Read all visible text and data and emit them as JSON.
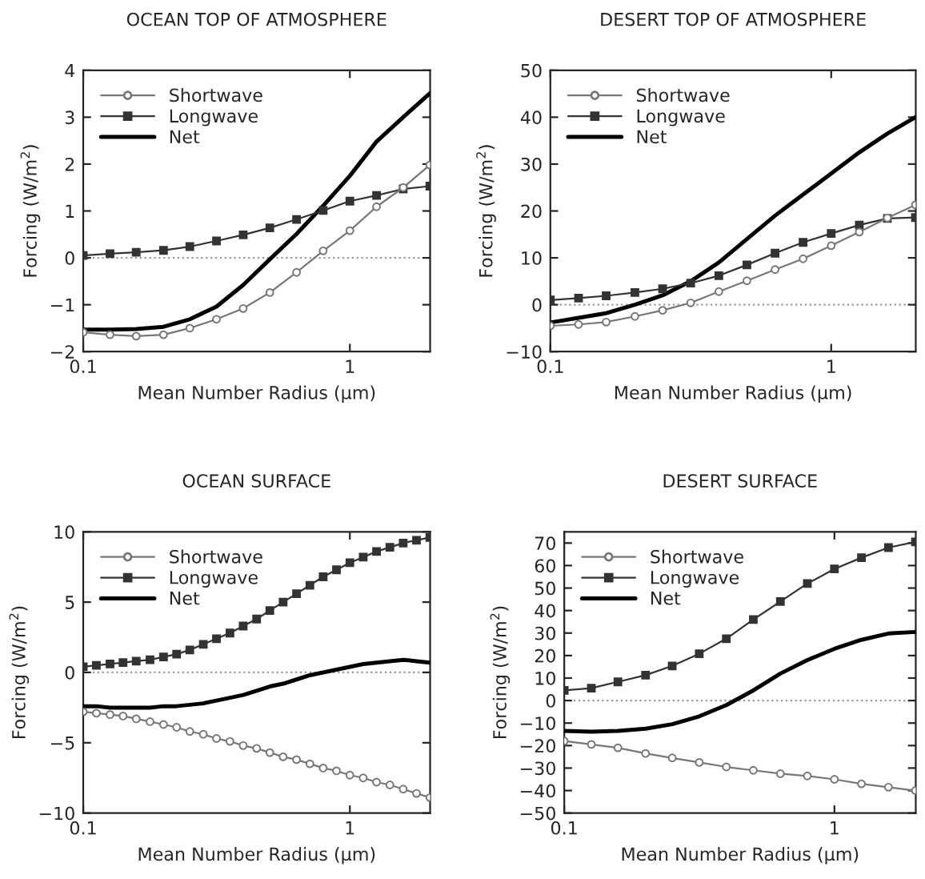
{
  "chart_data": [
    {
      "type": "line",
      "title": "OCEAN TOP OF ATMOSPHERE",
      "xlabel": "Mean Number Radius (μm)",
      "ylabel": "Forcing (W/m$^{2}$)",
      "log": "x",
      "xlim": [
        0.1,
        2
      ],
      "xticks": [
        0.1,
        1
      ],
      "ylim": [
        -2,
        4
      ],
      "yticks": [
        {
          "value": -2,
          "label": "−2"
        },
        {
          "value": -1,
          "label": "−1"
        },
        0,
        1,
        2,
        3,
        4
      ],
      "legend": "top left",
      "grid": false,
      "x": [
        0.1,
        0.126,
        0.158,
        0.2,
        0.251,
        0.316,
        0.398,
        0.501,
        0.631,
        0.794,
        1,
        1.259,
        1.585,
        1.995
      ],
      "ref_lines": [
        {
          "axis": "y",
          "value": 0,
          "color": "#999999",
          "line_style": "dotted"
        }
      ],
      "series": [
        {
          "name": "Shortwave",
          "color": "#777777",
          "marker": "circle",
          "values": [
            -1.59,
            -1.64,
            -1.67,
            -1.64,
            -1.5,
            -1.31,
            -1.08,
            -0.74,
            -0.31,
            0.15,
            0.58,
            1.09,
            1.5,
            1.98
          ]
        },
        {
          "name": "Longwave",
          "color": "#333333",
          "marker": "square",
          "values": [
            0.05,
            0.09,
            0.12,
            0.16,
            0.24,
            0.36,
            0.49,
            0.64,
            0.82,
            1.01,
            1.21,
            1.33,
            1.47,
            1.53
          ]
        },
        {
          "name": "Net",
          "color": "#000000",
          "marker": "none",
          "values": [
            -1.53,
            -1.53,
            -1.52,
            -1.47,
            -1.31,
            -1.04,
            -0.58,
            -0.03,
            0.51,
            1.11,
            1.75,
            2.48,
            3.0,
            3.51
          ]
        }
      ]
    },
    {
      "type": "line",
      "title": "DESERT TOP OF ATMOSPHERE",
      "xlabel": "Mean Number Radius (μm)",
      "ylabel": "Forcing (W/m$^{2}$)",
      "log": "x",
      "xlim": [
        0.1,
        2
      ],
      "xticks": [
        0.1,
        1
      ],
      "ylim": [
        -10,
        50
      ],
      "yticks": [
        {
          "value": -10,
          "label": "−10"
        },
        0,
        10,
        20,
        30,
        40,
        50
      ],
      "legend": "top left",
      "grid": false,
      "x": [
        0.1,
        0.126,
        0.158,
        0.2,
        0.251,
        0.316,
        0.398,
        0.501,
        0.631,
        0.794,
        1,
        1.259,
        1.585,
        1.995
      ],
      "ref_lines": [
        {
          "axis": "y",
          "value": 0,
          "color": "#999999",
          "line_style": "dotted"
        }
      ],
      "series": [
        {
          "name": "Shortwave",
          "color": "#777777",
          "marker": "circle",
          "values": [
            -4.5,
            -4.2,
            -3.7,
            -2.5,
            -1.2,
            0.4,
            2.8,
            5.1,
            7.5,
            9.8,
            12.6,
            15.5,
            18.5,
            21.3
          ]
        },
        {
          "name": "Longwave",
          "color": "#333333",
          "marker": "square",
          "values": [
            1.0,
            1.4,
            1.9,
            2.6,
            3.4,
            4.6,
            6.2,
            8.5,
            11.0,
            13.3,
            15.2,
            17.0,
            18.4,
            18.6
          ]
        },
        {
          "name": "Net",
          "color": "#000000",
          "marker": "none",
          "values": [
            -3.8,
            -2.8,
            -1.8,
            0,
            2.0,
            5.0,
            9,
            14,
            19,
            23.5,
            28,
            32.5,
            36.5,
            40
          ]
        }
      ]
    },
    {
      "type": "line",
      "title": "OCEAN SURFACE",
      "xlabel": "Mean Number Radius (μm)",
      "ylabel": "Forcing (W/m$^{2}$)",
      "log": "x",
      "xlim": [
        0.1,
        2
      ],
      "xticks": [
        0.1,
        1
      ],
      "ylim": [
        -10,
        10
      ],
      "yticks": [
        {
          "value": -10,
          "label": "−10"
        },
        {
          "value": -5,
          "label": "−5"
        },
        0,
        5,
        10
      ],
      "legend": "top left",
      "grid": false,
      "x": [
        0.1,
        0.112,
        0.126,
        0.141,
        0.158,
        0.178,
        0.2,
        0.224,
        0.251,
        0.282,
        0.316,
        0.355,
        0.398,
        0.447,
        0.501,
        0.562,
        0.631,
        0.708,
        0.794,
        0.891,
        1,
        1.122,
        1.259,
        1.413,
        1.585,
        1.778,
        1.995
      ],
      "ref_lines": [
        {
          "axis": "y",
          "value": 0,
          "color": "#999999",
          "line_style": "dotted"
        }
      ],
      "series": [
        {
          "name": "Shortwave",
          "color": "#777777",
          "marker": "circle",
          "values": [
            -2.8,
            -2.9,
            -3.0,
            -3.1,
            -3.3,
            -3.5,
            -3.7,
            -3.9,
            -4.2,
            -4.4,
            -4.7,
            -4.9,
            -5.2,
            -5.4,
            -5.7,
            -6.0,
            -6.2,
            -6.5,
            -6.8,
            -7.0,
            -7.3,
            -7.5,
            -7.8,
            -8.0,
            -8.3,
            -8.6,
            -8.9
          ]
        },
        {
          "name": "Longwave",
          "color": "#333333",
          "marker": "square",
          "values": [
            0.4,
            0.5,
            0.6,
            0.7,
            0.8,
            0.9,
            1.1,
            1.3,
            1.6,
            2.0,
            2.4,
            2.8,
            3.3,
            3.8,
            4.4,
            5.0,
            5.6,
            6.2,
            6.8,
            7.3,
            7.8,
            8.2,
            8.6,
            8.9,
            9.2,
            9.4,
            9.6
          ]
        },
        {
          "name": "Net",
          "color": "#000000",
          "marker": "none",
          "values": [
            -2.4,
            -2.4,
            -2.5,
            -2.5,
            -2.5,
            -2.5,
            -2.4,
            -2.4,
            -2.3,
            -2.2,
            -2.0,
            -1.8,
            -1.6,
            -1.3,
            -1.0,
            -0.8,
            -0.5,
            -0.2,
            0.0,
            0.2,
            0.4,
            0.6,
            0.7,
            0.8,
            0.9,
            0.8,
            0.7
          ]
        }
      ]
    },
    {
      "type": "line",
      "title": "DESERT SURFACE",
      "xlabel": "Mean Number Radius (μm)",
      "ylabel": "Forcing (W/m$^{2}$)",
      "log": "x",
      "xlim": [
        0.1,
        2
      ],
      "xticks": [
        0.1,
        1
      ],
      "ylim": [
        -50,
        75
      ],
      "yticks": [
        {
          "value": -50,
          "label": "−50"
        },
        {
          "value": -40,
          "label": "−40"
        },
        {
          "value": -30,
          "label": "−30"
        },
        {
          "value": -20,
          "label": "−20"
        },
        {
          "value": -10,
          "label": "−10"
        },
        0,
        10,
        20,
        30,
        40,
        50,
        60,
        70
      ],
      "legend": "top left",
      "grid": false,
      "x": [
        0.1,
        0.126,
        0.158,
        0.2,
        0.251,
        0.316,
        0.398,
        0.501,
        0.631,
        0.794,
        1,
        1.259,
        1.585,
        1.995
      ],
      "ref_lines": [
        {
          "axis": "y",
          "value": 0,
          "color": "#999999",
          "line_style": "dotted"
        }
      ],
      "series": [
        {
          "name": "Shortwave",
          "color": "#777777",
          "marker": "circle",
          "values": [
            -18,
            -19.5,
            -21,
            -23.5,
            -25.5,
            -27.5,
            -29.5,
            -31,
            -32.5,
            -33.5,
            -35,
            -37,
            -38.5,
            -40
          ]
        },
        {
          "name": "Longwave",
          "color": "#333333",
          "marker": "square",
          "values": [
            4.5,
            5.5,
            8.3,
            11.3,
            15.4,
            20.8,
            27.5,
            36,
            44,
            52,
            58.5,
            63.5,
            68,
            70.5
          ]
        },
        {
          "name": "Net",
          "color": "#000000",
          "marker": "none",
          "values": [
            -13.5,
            -13.8,
            -13.5,
            -12.5,
            -10.5,
            -7,
            -2,
            4.5,
            12,
            18,
            23,
            27,
            29.8,
            30.5
          ]
        }
      ]
    }
  ]
}
